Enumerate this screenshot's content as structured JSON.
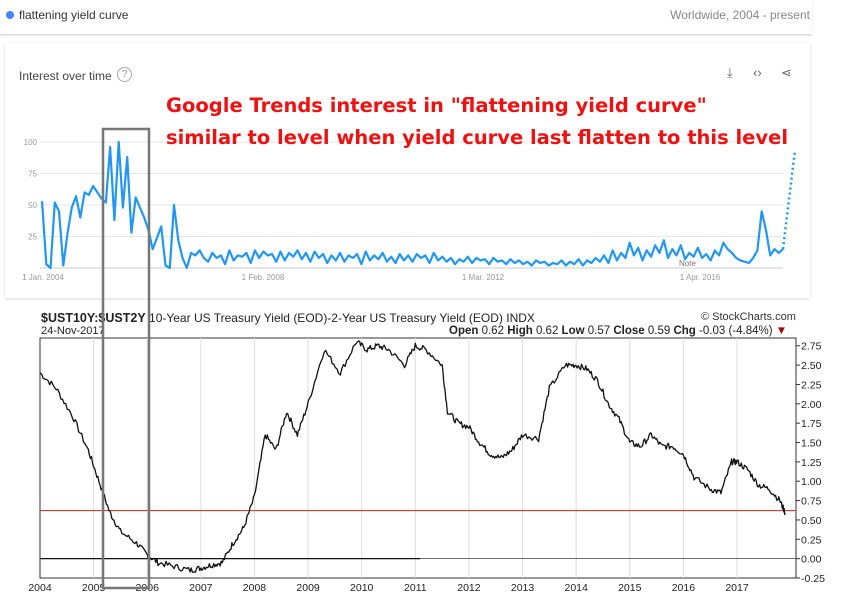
{
  "header": {
    "search_term": "flattening yield curve",
    "region": "Worldwide, 2004 - present"
  },
  "card": {
    "title": "Interest over time",
    "help_icon": "help-icon",
    "tools": [
      "download-icon",
      "embed-icon",
      "share-icon"
    ]
  },
  "annotation": {
    "line1": "Google Trends interest in \"flattening yield curve\"",
    "line2": "similar to level when yield curve last flatten to this level",
    "color": "#ee1111"
  },
  "chart_data": [
    {
      "type": "line",
      "title": "Interest over time",
      "xlabels": [
        "1 Jan. 2004",
        "1 Feb. 2008",
        "1 Mar. 2012",
        "1 Apr. 2016"
      ],
      "yticks": [
        "25",
        "50",
        "75",
        "100"
      ],
      "ylim": [
        0,
        100
      ],
      "note": "Note",
      "series_color": "#2196f3",
      "series": [
        {
          "values": [
            53,
            3,
            0,
            52,
            45,
            2,
            28,
            48,
            57,
            40,
            60,
            58,
            65,
            60,
            55,
            52,
            96,
            38,
            100,
            48,
            88,
            28,
            56,
            48,
            40,
            30,
            15,
            24,
            33,
            2,
            0,
            50,
            22,
            8,
            0,
            12,
            10,
            14,
            8,
            5,
            12,
            8,
            10,
            3,
            14,
            6,
            10,
            9,
            12,
            4,
            14,
            8,
            13,
            10,
            11,
            5,
            13,
            6,
            12,
            9,
            14,
            7,
            12,
            5,
            13,
            8,
            11,
            4,
            10,
            6,
            12,
            5,
            10,
            8,
            11,
            3,
            13,
            6,
            10,
            7,
            12,
            5,
            9,
            4,
            11,
            6,
            10,
            5,
            11,
            8,
            10,
            4,
            12,
            6,
            9,
            5,
            8,
            3,
            7,
            5,
            9,
            4,
            8,
            6,
            7,
            3,
            8,
            5,
            6,
            3,
            7,
            4,
            6,
            3,
            5,
            2,
            6,
            4,
            5,
            2,
            4,
            3,
            6,
            2,
            5,
            3,
            7,
            2,
            6,
            4,
            8,
            5,
            10,
            4,
            14,
            6,
            12,
            8,
            20,
            10,
            16,
            6,
            14,
            9,
            18,
            12,
            22,
            8,
            15,
            10,
            18,
            7,
            12,
            9,
            16,
            8,
            11,
            6,
            14,
            10,
            20,
            15,
            12,
            8,
            6,
            5,
            4,
            8,
            14,
            45,
            30,
            10,
            15,
            12,
            15
          ]
        }
      ]
    },
    {
      "type": "line",
      "title": "$UST10Y:$UST2Y",
      "subtitle": "10-Year US Treasury Yield (EOD)-2-Year US Treasury Yield (EOD) INDX",
      "date": "24-Nov-2017",
      "brand": "© StockCharts.com",
      "ohlc": {
        "open_label": "Open",
        "open": "0.62",
        "high_label": "High",
        "high": "0.62",
        "low_label": "Low",
        "low": "0.57",
        "close_label": "Close",
        "close": "0.59",
        "chg_label": "Chg",
        "chg": "-0.03 (-4.84%)"
      },
      "x": [
        "2004",
        "2005",
        "2006",
        "2007",
        "2008",
        "2009",
        "2010",
        "2011",
        "2012",
        "2013",
        "2014",
        "2015",
        "2016",
        "2017"
      ],
      "yticks": [
        "-0.25",
        "0.00",
        "0.25",
        "0.50",
        "0.75",
        "1.00",
        "1.25",
        "1.50",
        "1.75",
        "2.00",
        "2.25",
        "2.50",
        "2.75"
      ],
      "ylim": [
        -0.25,
        2.85
      ],
      "reference_line": 0.62,
      "reference_color": "#cc2222",
      "series": [
        {
          "points": [
            [
              2004.0,
              2.4
            ],
            [
              2004.3,
              2.2
            ],
            [
              2004.6,
              1.85
            ],
            [
              2004.9,
              1.4
            ],
            [
              2005.1,
              1.0
            ],
            [
              2005.3,
              0.6
            ],
            [
              2005.5,
              0.35
            ],
            [
              2005.8,
              0.2
            ],
            [
              2006.0,
              0.05
            ],
            [
              2006.2,
              -0.05
            ],
            [
              2006.5,
              -0.1
            ],
            [
              2006.8,
              -0.15
            ],
            [
              2007.0,
              -0.12
            ],
            [
              2007.2,
              -0.08
            ],
            [
              2007.4,
              -0.05
            ],
            [
              2007.6,
              0.2
            ],
            [
              2007.8,
              0.4
            ],
            [
              2008.0,
              0.8
            ],
            [
              2008.2,
              1.6
            ],
            [
              2008.4,
              1.4
            ],
            [
              2008.6,
              1.9
            ],
            [
              2008.8,
              1.6
            ],
            [
              2009.0,
              2.0
            ],
            [
              2009.3,
              2.7
            ],
            [
              2009.6,
              2.4
            ],
            [
              2009.9,
              2.8
            ],
            [
              2010.1,
              2.7
            ],
            [
              2010.3,
              2.75
            ],
            [
              2010.5,
              2.7
            ],
            [
              2010.8,
              2.5
            ],
            [
              2011.0,
              2.75
            ],
            [
              2011.2,
              2.7
            ],
            [
              2011.5,
              2.5
            ],
            [
              2011.6,
              1.9
            ],
            [
              2011.8,
              1.75
            ],
            [
              2012.0,
              1.7
            ],
            [
              2012.2,
              1.5
            ],
            [
              2012.4,
              1.35
            ],
            [
              2012.6,
              1.3
            ],
            [
              2012.8,
              1.4
            ],
            [
              2013.0,
              1.6
            ],
            [
              2013.3,
              1.55
            ],
            [
              2013.5,
              2.2
            ],
            [
              2013.8,
              2.5
            ],
            [
              2014.0,
              2.5
            ],
            [
              2014.2,
              2.45
            ],
            [
              2014.4,
              2.3
            ],
            [
              2014.6,
              2.0
            ],
            [
              2014.8,
              1.8
            ],
            [
              2015.0,
              1.5
            ],
            [
              2015.2,
              1.45
            ],
            [
              2015.4,
              1.6
            ],
            [
              2015.6,
              1.45
            ],
            [
              2015.8,
              1.45
            ],
            [
              2016.0,
              1.35
            ],
            [
              2016.2,
              1.05
            ],
            [
              2016.5,
              0.9
            ],
            [
              2016.7,
              0.85
            ],
            [
              2016.9,
              1.25
            ],
            [
              2017.0,
              1.25
            ],
            [
              2017.2,
              1.15
            ],
            [
              2017.4,
              0.95
            ],
            [
              2017.6,
              0.9
            ],
            [
              2017.8,
              0.75
            ],
            [
              2017.9,
              0.59
            ]
          ]
        }
      ]
    }
  ]
}
